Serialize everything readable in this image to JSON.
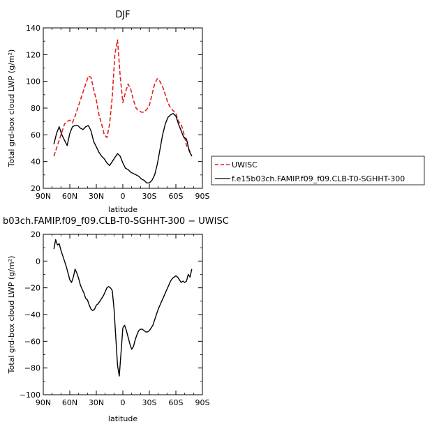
{
  "chart_data": [
    {
      "type": "line",
      "title": "DJF",
      "xlabel": "latitude",
      "ylabel": "Total grd-box cloud LWP (g/m²)",
      "xlim": [
        90,
        -90
      ],
      "ylim": [
        20,
        140
      ],
      "x_ticks": [
        90,
        60,
        30,
        0,
        -30,
        -60,
        -90
      ],
      "x_tick_labels": [
        "90N",
        "60N",
        "30N",
        "0",
        "30S",
        "60S",
        "90S"
      ],
      "y_ticks": [
        20,
        40,
        60,
        80,
        100,
        120,
        140
      ],
      "legend_position": "right",
      "series": [
        {
          "name": "UWISC",
          "color": "#e0201f",
          "dash": "dashed",
          "x": [
            78,
            75,
            72,
            69,
            66,
            63,
            60,
            57,
            54,
            51,
            48,
            45,
            42,
            39,
            36,
            33,
            30,
            27,
            24,
            21,
            18,
            15,
            12,
            9,
            6,
            3,
            0,
            -3,
            -6,
            -9,
            -12,
            -15,
            -18,
            -21,
            -24,
            -27,
            -30,
            -33,
            -36,
            -39,
            -42,
            -45,
            -48,
            -51,
            -54,
            -57,
            -60,
            -63,
            -66,
            -69,
            -72,
            -75,
            -78
          ],
          "y": [
            44,
            50,
            56,
            62,
            68,
            70,
            71,
            69,
            74,
            80,
            86,
            92,
            98,
            104,
            103,
            94,
            86,
            75,
            68,
            60,
            58,
            68,
            88,
            120,
            131,
            104,
            84,
            92,
            98,
            94,
            86,
            80,
            78,
            77,
            77,
            79,
            82,
            90,
            98,
            102,
            100,
            96,
            90,
            84,
            80,
            78,
            76,
            70,
            68,
            61,
            52,
            49,
            44
          ]
        },
        {
          "name": "f.e15b03ch.FAMIP.f09_f09.CLB-T0-SGHHT-300",
          "color": "#000000",
          "dash": "solid",
          "x": [
            78,
            75,
            72,
            69,
            66,
            63,
            60,
            57,
            54,
            51,
            48,
            45,
            42,
            39,
            36,
            33,
            30,
            27,
            24,
            21,
            18,
            15,
            12,
            9,
            6,
            3,
            0,
            -3,
            -6,
            -9,
            -12,
            -15,
            -18,
            -21,
            -24,
            -27,
            -30,
            -33,
            -36,
            -39,
            -42,
            -45,
            -48,
            -51,
            -54,
            -57,
            -60,
            -63,
            -66,
            -69,
            -72,
            -75,
            -78
          ],
          "y": [
            53,
            61,
            66,
            60,
            56,
            52,
            61,
            66,
            67,
            67,
            65,
            64,
            66,
            67,
            63,
            55,
            51,
            47,
            44,
            42,
            39,
            37,
            40,
            43,
            46,
            44,
            39,
            35,
            34,
            32,
            31,
            30,
            29,
            27,
            26,
            24,
            24,
            26,
            30,
            38,
            49,
            60,
            68,
            73,
            75,
            76,
            74,
            68,
            63,
            58,
            57,
            48,
            44
          ]
        }
      ]
    },
    {
      "type": "line",
      "title": "b03ch.FAMIP.f09_f09.CLB-T0-SGHHT-300 − UWISC",
      "xlabel": "latitude",
      "ylabel": "Total grd-box cloud LWP (g/m²)",
      "xlim": [
        90,
        -90
      ],
      "ylim": [
        -100,
        20
      ],
      "x_ticks": [
        90,
        60,
        30,
        0,
        -30,
        -60,
        -90
      ],
      "x_tick_labels": [
        "90N",
        "60N",
        "30N",
        "0",
        "30S",
        "60S",
        "90S"
      ],
      "y_ticks": [
        -100,
        -80,
        -60,
        -40,
        -20,
        0,
        20
      ],
      "y_tick_labels": [
        "−100",
        "−80",
        "−60",
        "−40",
        "−20",
        "0",
        "20"
      ],
      "series": [
        {
          "color": "#000000",
          "dash": "solid",
          "x": [
            78,
            76,
            74,
            72,
            70,
            68,
            66,
            64,
            62,
            60,
            58,
            56,
            54,
            52,
            50,
            48,
            46,
            44,
            42,
            40,
            38,
            36,
            34,
            32,
            30,
            28,
            26,
            24,
            22,
            20,
            18,
            16,
            14,
            12,
            10,
            8,
            6,
            4,
            2,
            0,
            -2,
            -4,
            -6,
            -8,
            -10,
            -12,
            -14,
            -16,
            -18,
            -20,
            -22,
            -24,
            -26,
            -28,
            -30,
            -32,
            -34,
            -36,
            -38,
            -40,
            -42,
            -44,
            -46,
            -48,
            -50,
            -52,
            -54,
            -56,
            -58,
            -60,
            -62,
            -64,
            -66,
            -68,
            -70,
            -72,
            -74,
            -76,
            -78
          ],
          "y": [
            9,
            16,
            12,
            13,
            8,
            4,
            0,
            -4,
            -9,
            -14,
            -16,
            -12,
            -6,
            -9,
            -13,
            -18,
            -21,
            -24,
            -28,
            -29,
            -33,
            -36,
            -37,
            -36,
            -33,
            -32,
            -30,
            -28,
            -26,
            -23,
            -20,
            -19,
            -20,
            -22,
            -35,
            -57,
            -78,
            -86,
            -68,
            -50,
            -48,
            -52,
            -57,
            -62,
            -66,
            -64,
            -59,
            -55,
            -52,
            -51,
            -51,
            -52,
            -53,
            -53,
            -52,
            -50,
            -48,
            -44,
            -40,
            -36,
            -33,
            -30,
            -27,
            -24,
            -21,
            -18,
            -15,
            -13,
            -12,
            -11,
            -12,
            -14,
            -16,
            -15,
            -16,
            -15,
            -10,
            -12,
            -6
          ]
        }
      ]
    }
  ]
}
